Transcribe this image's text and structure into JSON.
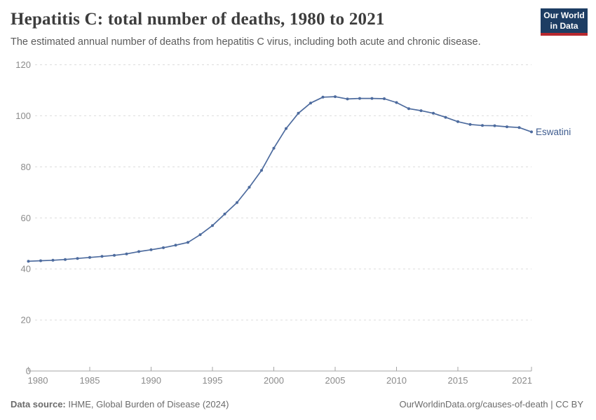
{
  "header": {
    "title": "Hepatitis C: total number of deaths, 1980 to 2021",
    "subtitle": "The estimated annual number of deaths from hepatitis C virus, including both acute and chronic disease.",
    "logo": {
      "line1": "Our World",
      "line2": "in Data",
      "bg_color": "#1d3d63",
      "accent_color": "#b7282e"
    }
  },
  "chart_data": {
    "type": "line",
    "title": "Hepatitis C: total number of deaths, 1980 to 2021",
    "xlabel": "",
    "ylabel": "",
    "xlim": [
      1980,
      2021
    ],
    "ylim": [
      0,
      120
    ],
    "grid": "horizontal-dashed",
    "legend_position": "end-of-line",
    "x_ticks": [
      1980,
      1985,
      1990,
      1995,
      2000,
      2005,
      2010,
      2015,
      2021
    ],
    "y_ticks": [
      0,
      20,
      40,
      60,
      80,
      100,
      120
    ],
    "x": [
      1980,
      1981,
      1982,
      1983,
      1984,
      1985,
      1986,
      1987,
      1988,
      1989,
      1990,
      1991,
      1992,
      1993,
      1994,
      1995,
      1996,
      1997,
      1998,
      1999,
      2000,
      2001,
      2002,
      2003,
      2004,
      2005,
      2006,
      2007,
      2008,
      2009,
      2010,
      2011,
      2012,
      2013,
      2014,
      2015,
      2016,
      2017,
      2018,
      2019,
      2020,
      2021
    ],
    "series": [
      {
        "name": "Eswatini",
        "color": "#4d6b9e",
        "label_color": "#3e5c8f",
        "values": [
          43.0,
          43.2,
          43.4,
          43.7,
          44.1,
          44.5,
          44.9,
          45.3,
          45.9,
          46.8,
          47.5,
          48.3,
          49.3,
          50.4,
          53.4,
          57.0,
          61.5,
          66.0,
          72.0,
          78.6,
          87.3,
          95.0,
          101.0,
          105.0,
          107.3,
          107.5,
          106.6,
          106.8,
          106.8,
          106.7,
          105.2,
          102.8,
          102.0,
          101.0,
          99.4,
          97.7,
          96.6,
          96.2,
          96.1,
          95.7,
          95.4,
          93.7
        ]
      }
    ],
    "colors": {
      "gridline": "#dcdcdc",
      "axis": "#a5a5a5",
      "tick_label": "#8b8b8b"
    }
  },
  "footer": {
    "source_label": "Data source:",
    "source_value": " IHME, Global Burden of Disease (2024)",
    "credit": "OurWorldinData.org/causes-of-death | CC BY"
  }
}
